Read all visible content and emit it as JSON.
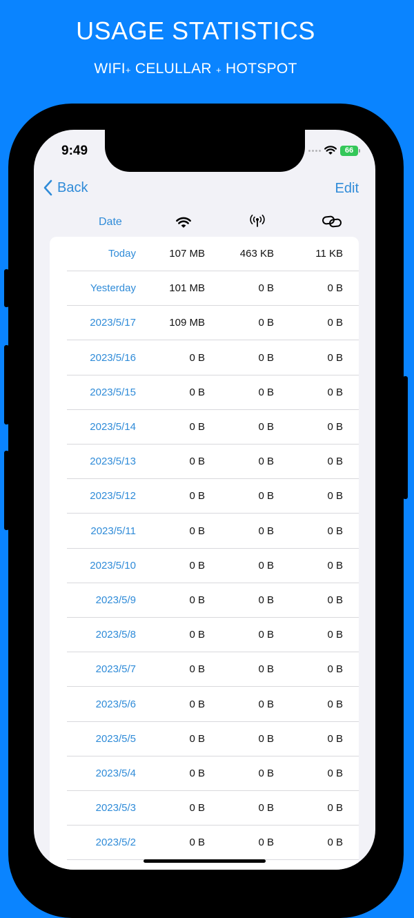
{
  "promo": {
    "title": "USAGE STATISTICS",
    "subtitle_wifi": "WIFI",
    "subtitle_plus": "+",
    "subtitle_cellular": "CELULLAR",
    "subtitle_hotspot": "HOTSPOT"
  },
  "status_bar": {
    "time": "9:49",
    "battery": "66"
  },
  "nav": {
    "back_label": "Back",
    "edit_label": "Edit"
  },
  "columns": {
    "date_label": "Date",
    "wifi_icon": "wifi-icon",
    "cellular_icon": "cellular-antenna-icon",
    "hotspot_icon": "link-icon"
  },
  "colors": {
    "background": "#0a84ff",
    "accent": "#2f8bd8",
    "battery": "#34c759"
  },
  "rows": [
    {
      "date": "Today",
      "wifi": "107 MB",
      "cellular": "463 KB",
      "hotspot": "11 KB"
    },
    {
      "date": "Yesterday",
      "wifi": "101 MB",
      "cellular": "0 B",
      "hotspot": "0 B"
    },
    {
      "date": "2023/5/17",
      "wifi": "109 MB",
      "cellular": "0 B",
      "hotspot": "0 B"
    },
    {
      "date": "2023/5/16",
      "wifi": "0 B",
      "cellular": "0 B",
      "hotspot": "0 B"
    },
    {
      "date": "2023/5/15",
      "wifi": "0 B",
      "cellular": "0 B",
      "hotspot": "0 B"
    },
    {
      "date": "2023/5/14",
      "wifi": "0 B",
      "cellular": "0 B",
      "hotspot": "0 B"
    },
    {
      "date": "2023/5/13",
      "wifi": "0 B",
      "cellular": "0 B",
      "hotspot": "0 B"
    },
    {
      "date": "2023/5/12",
      "wifi": "0 B",
      "cellular": "0 B",
      "hotspot": "0 B"
    },
    {
      "date": "2023/5/11",
      "wifi": "0 B",
      "cellular": "0 B",
      "hotspot": "0 B"
    },
    {
      "date": "2023/5/10",
      "wifi": "0 B",
      "cellular": "0 B",
      "hotspot": "0 B"
    },
    {
      "date": "2023/5/9",
      "wifi": "0 B",
      "cellular": "0 B",
      "hotspot": "0 B"
    },
    {
      "date": "2023/5/8",
      "wifi": "0 B",
      "cellular": "0 B",
      "hotspot": "0 B"
    },
    {
      "date": "2023/5/7",
      "wifi": "0 B",
      "cellular": "0 B",
      "hotspot": "0 B"
    },
    {
      "date": "2023/5/6",
      "wifi": "0 B",
      "cellular": "0 B",
      "hotspot": "0 B"
    },
    {
      "date": "2023/5/5",
      "wifi": "0 B",
      "cellular": "0 B",
      "hotspot": "0 B"
    },
    {
      "date": "2023/5/4",
      "wifi": "0 B",
      "cellular": "0 B",
      "hotspot": "0 B"
    },
    {
      "date": "2023/5/3",
      "wifi": "0 B",
      "cellular": "0 B",
      "hotspot": "0 B"
    },
    {
      "date": "2023/5/2",
      "wifi": "0 B",
      "cellular": "0 B",
      "hotspot": "0 B"
    }
  ]
}
